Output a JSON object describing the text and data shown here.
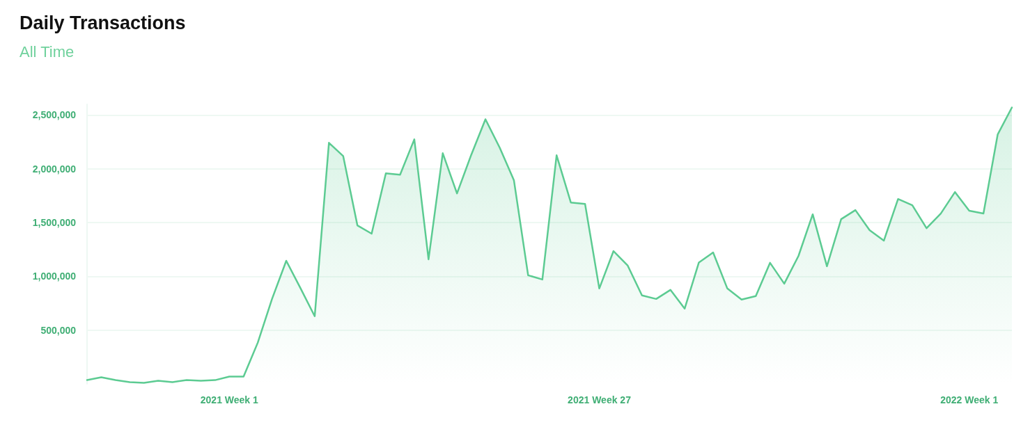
{
  "chart_data": {
    "type": "area",
    "title": "Daily Transactions",
    "subtitle": "All Time",
    "categories": [
      null,
      null,
      null,
      null,
      null,
      null,
      null,
      null,
      null,
      null,
      "2021 Week 1",
      null,
      null,
      null,
      null,
      null,
      null,
      null,
      null,
      null,
      null,
      null,
      null,
      null,
      null,
      null,
      null,
      null,
      null,
      null,
      null,
      null,
      null,
      null,
      null,
      null,
      "2021 Week 27",
      null,
      null,
      null,
      null,
      null,
      null,
      null,
      null,
      null,
      null,
      null,
      null,
      null,
      null,
      null,
      null,
      null,
      null,
      null,
      null,
      null,
      null,
      null,
      null,
      null,
      "2022 Week 1",
      null,
      null,
      null
    ],
    "series": [
      {
        "color": "#5ccb92",
        "values": [
          35000,
          61000,
          35000,
          16000,
          10000,
          29000,
          16000,
          35000,
          29000,
          35000,
          68000,
          68000,
          384000,
          790000,
          1145000,
          890000,
          629000,
          2242000,
          2119000,
          1474000,
          1397000,
          1958000,
          1945000,
          2274000,
          1158000,
          2145000,
          1771000,
          2130000,
          2461000,
          2197000,
          1894000,
          1010000,
          971000,
          2126000,
          1687000,
          1674000,
          887000,
          1235000,
          1100000,
          823000,
          790000,
          874000,
          700000,
          1129000,
          1222000,
          887000,
          784000,
          816000,
          1126000,
          932000,
          1190000,
          1577000,
          1094000,
          1532000,
          1616000,
          1429000,
          1332000,
          1719000,
          1661000,
          1448000,
          1584000,
          1784000,
          1610000,
          1584000,
          2319000,
          2571000
        ]
      }
    ],
    "ylim": [
      0,
      2600000
    ],
    "yticks": [
      {
        "value": 500000,
        "label": "500,000"
      },
      {
        "value": 1000000,
        "label": "1,000,000"
      },
      {
        "value": 1500000,
        "label": "1,500,000"
      },
      {
        "value": 2000000,
        "label": "2,000,000"
      },
      {
        "value": 2500000,
        "label": "2,500,000"
      }
    ],
    "grid": "y",
    "marker": "none",
    "line_style": "solid"
  }
}
